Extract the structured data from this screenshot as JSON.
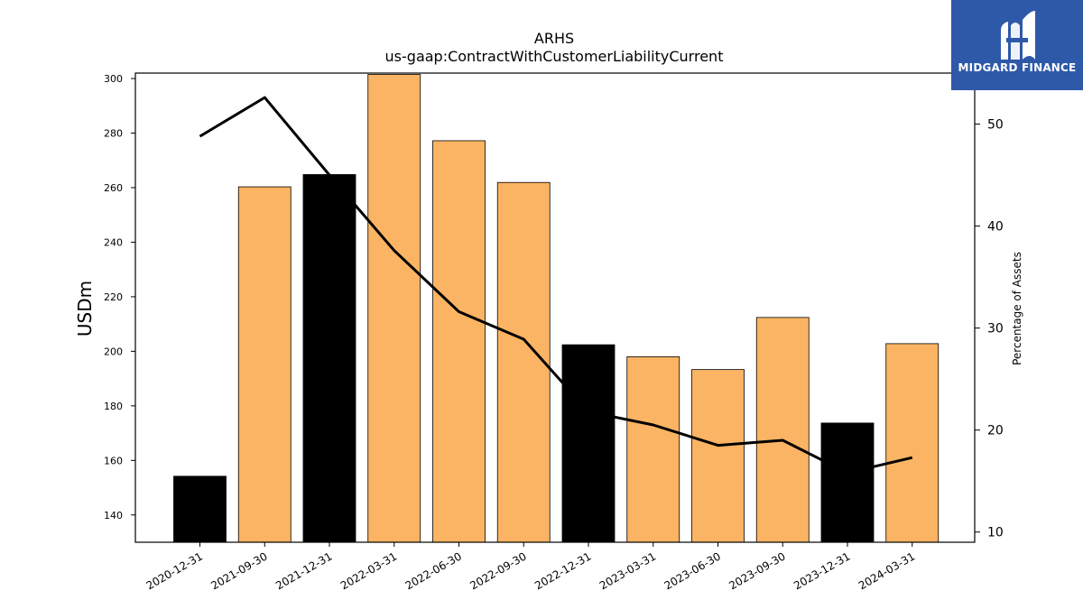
{
  "chart_data": {
    "type": "bar",
    "title": "ARHS",
    "subtitle": "us-gaap:ContractWithCustomerLiabilityCurrent",
    "ylabel": "USDm",
    "y2label": "Percentage of Assets",
    "ylim": [
      130,
      302
    ],
    "y2lim": [
      9,
      55
    ],
    "yticks": [
      140,
      160,
      180,
      200,
      220,
      240,
      260,
      280,
      300
    ],
    "y2ticks": [
      10,
      20,
      30,
      40,
      50
    ],
    "categories": [
      "2020-12-31",
      "2021-09-30",
      "2021-12-31",
      "2022-03-31",
      "2022-06-30",
      "2022-09-30",
      "2022-12-31",
      "2023-03-31",
      "2023-06-30",
      "2023-09-30",
      "2023-12-31",
      "2024-03-31"
    ],
    "series": [
      {
        "type": "bar",
        "values": [
          154.2,
          260.3,
          264.8,
          301.5,
          277.2,
          261.9,
          202.4,
          198.0,
          193.3,
          212.4,
          173.7,
          202.8
        ],
        "colors": [
          "#000000",
          "#fbb463",
          "#000000",
          "#fbb463",
          "#fbb463",
          "#fbb463",
          "#000000",
          "#fbb463",
          "#fbb463",
          "#fbb463",
          "#000000",
          "#fbb463"
        ]
      },
      {
        "type": "line",
        "axis": "right",
        "color": "#000000",
        "values": [
          48.8,
          52.6,
          45.0,
          37.6,
          31.6,
          28.9,
          21.8,
          20.5,
          18.5,
          19.0,
          15.8,
          17.3
        ]
      }
    ],
    "grid": false
  },
  "logo": {
    "text": "MIDGARD FINANCE",
    "background": "#2e59a8"
  }
}
